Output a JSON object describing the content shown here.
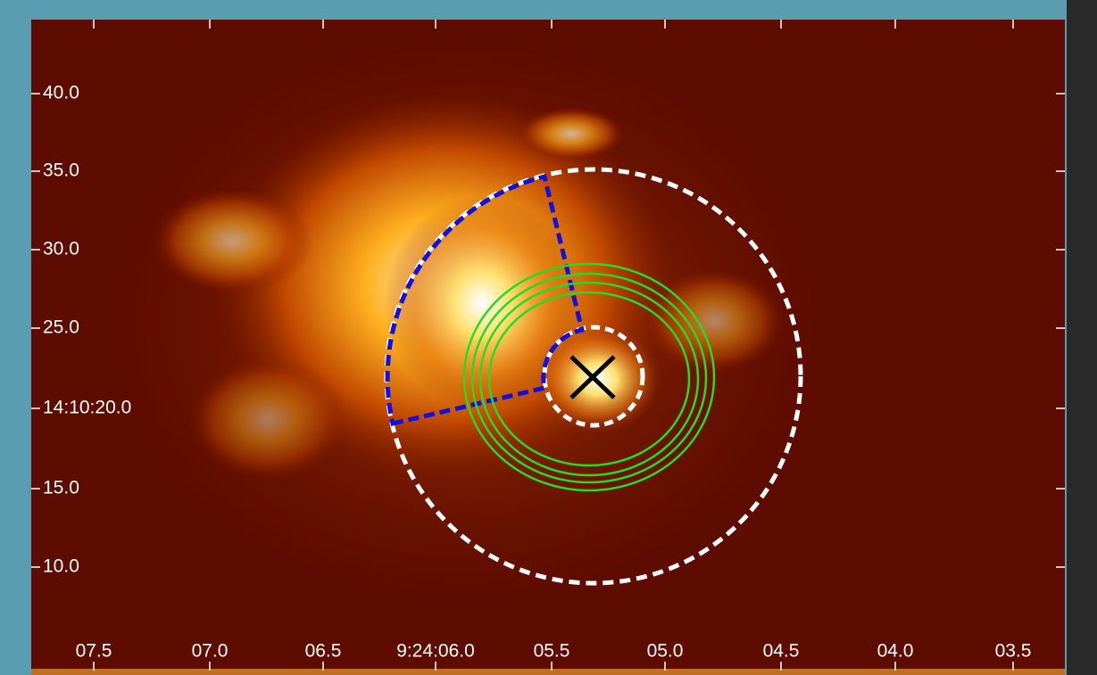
{
  "axes": {
    "y_labels": [
      "40.0",
      "35.0",
      "30.0",
      "25.0",
      "14:10:20.0",
      "15.0",
      "10.0"
    ],
    "x_labels": [
      "07.5",
      "07.0",
      "06.5",
      "9:24:06.0",
      "05.5",
      "05.0",
      "04.5",
      "04.0",
      "03.5"
    ]
  }
}
